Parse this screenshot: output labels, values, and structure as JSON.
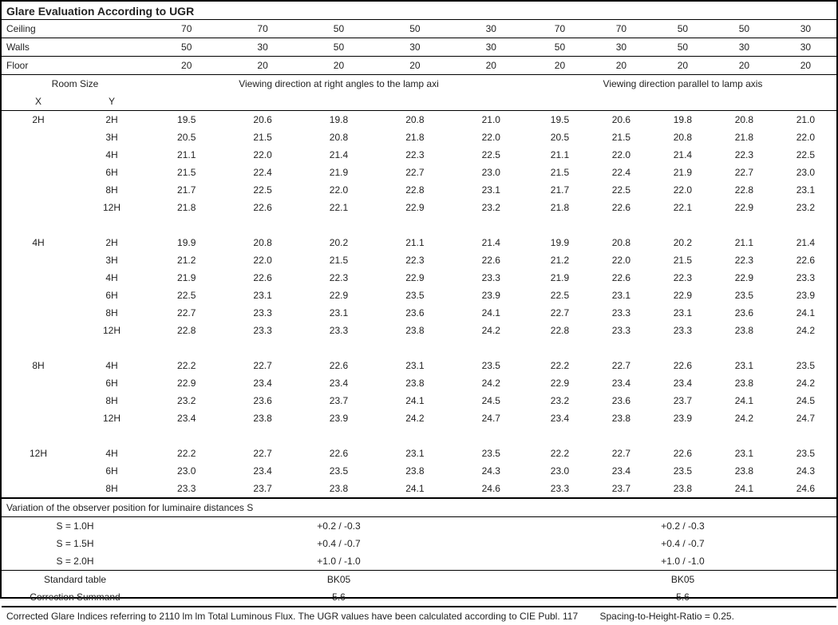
{
  "title": "Glare Evaluation According to UGR",
  "reflectance": {
    "rows": [
      {
        "label": "Ceiling",
        "left": [
          "70",
          "70",
          "50",
          "50",
          "30"
        ],
        "right": [
          "70",
          "70",
          "50",
          "50",
          "30"
        ]
      },
      {
        "label": "Walls",
        "left": [
          "50",
          "30",
          "50",
          "30",
          "30"
        ],
        "right": [
          "50",
          "30",
          "50",
          "30",
          "30"
        ]
      },
      {
        "label": "Floor",
        "left": [
          "20",
          "20",
          "20",
          "20",
          "20"
        ],
        "right": [
          "20",
          "20",
          "20",
          "20",
          "20"
        ]
      }
    ]
  },
  "headers": {
    "room_size": "Room Size",
    "x": "X",
    "y": "Y",
    "left_caption": "Viewing direction at right angles to the lamp axi",
    "right_caption": "Viewing direction parallel to lamp axis"
  },
  "groups": [
    {
      "x": "2H",
      "rows": [
        {
          "y": "2H",
          "l": [
            "19.5",
            "20.6",
            "19.8",
            "20.8",
            "21.0"
          ],
          "r": [
            "19.5",
            "20.6",
            "19.8",
            "20.8",
            "21.0"
          ]
        },
        {
          "y": "3H",
          "l": [
            "20.5",
            "21.5",
            "20.8",
            "21.8",
            "22.0"
          ],
          "r": [
            "20.5",
            "21.5",
            "20.8",
            "21.8",
            "22.0"
          ]
        },
        {
          "y": "4H",
          "l": [
            "21.1",
            "22.0",
            "21.4",
            "22.3",
            "22.5"
          ],
          "r": [
            "21.1",
            "22.0",
            "21.4",
            "22.3",
            "22.5"
          ]
        },
        {
          "y": "6H",
          "l": [
            "21.5",
            "22.4",
            "21.9",
            "22.7",
            "23.0"
          ],
          "r": [
            "21.5",
            "22.4",
            "21.9",
            "22.7",
            "23.0"
          ]
        },
        {
          "y": "8H",
          "l": [
            "21.7",
            "22.5",
            "22.0",
            "22.8",
            "23.1"
          ],
          "r": [
            "21.7",
            "22.5",
            "22.0",
            "22.8",
            "23.1"
          ]
        },
        {
          "y": "12H",
          "l": [
            "21.8",
            "22.6",
            "22.1",
            "22.9",
            "23.2"
          ],
          "r": [
            "21.8",
            "22.6",
            "22.1",
            "22.9",
            "23.2"
          ]
        }
      ]
    },
    {
      "x": "4H",
      "rows": [
        {
          "y": "2H",
          "l": [
            "19.9",
            "20.8",
            "20.2",
            "21.1",
            "21.4"
          ],
          "r": [
            "19.9",
            "20.8",
            "20.2",
            "21.1",
            "21.4"
          ]
        },
        {
          "y": "3H",
          "l": [
            "21.2",
            "22.0",
            "21.5",
            "22.3",
            "22.6"
          ],
          "r": [
            "21.2",
            "22.0",
            "21.5",
            "22.3",
            "22.6"
          ]
        },
        {
          "y": "4H",
          "l": [
            "21.9",
            "22.6",
            "22.3",
            "22.9",
            "23.3"
          ],
          "r": [
            "21.9",
            "22.6",
            "22.3",
            "22.9",
            "23.3"
          ]
        },
        {
          "y": "6H",
          "l": [
            "22.5",
            "23.1",
            "22.9",
            "23.5",
            "23.9"
          ],
          "r": [
            "22.5",
            "23.1",
            "22.9",
            "23.5",
            "23.9"
          ]
        },
        {
          "y": "8H",
          "l": [
            "22.7",
            "23.3",
            "23.1",
            "23.6",
            "24.1"
          ],
          "r": [
            "22.7",
            "23.3",
            "23.1",
            "23.6",
            "24.1"
          ]
        },
        {
          "y": "12H",
          "l": [
            "22.8",
            "23.3",
            "23.3",
            "23.8",
            "24.2"
          ],
          "r": [
            "22.8",
            "23.3",
            "23.3",
            "23.8",
            "24.2"
          ]
        }
      ]
    },
    {
      "x": "8H",
      "rows": [
        {
          "y": "4H",
          "l": [
            "22.2",
            "22.7",
            "22.6",
            "23.1",
            "23.5"
          ],
          "r": [
            "22.2",
            "22.7",
            "22.6",
            "23.1",
            "23.5"
          ]
        },
        {
          "y": "6H",
          "l": [
            "22.9",
            "23.4",
            "23.4",
            "23.8",
            "24.2"
          ],
          "r": [
            "22.9",
            "23.4",
            "23.4",
            "23.8",
            "24.2"
          ]
        },
        {
          "y": "8H",
          "l": [
            "23.2",
            "23.6",
            "23.7",
            "24.1",
            "24.5"
          ],
          "r": [
            "23.2",
            "23.6",
            "23.7",
            "24.1",
            "24.5"
          ]
        },
        {
          "y": "12H",
          "l": [
            "23.4",
            "23.8",
            "23.9",
            "24.2",
            "24.7"
          ],
          "r": [
            "23.4",
            "23.8",
            "23.9",
            "24.2",
            "24.7"
          ]
        }
      ]
    },
    {
      "x": "12H",
      "rows": [
        {
          "y": "4H",
          "l": [
            "22.2",
            "22.7",
            "22.6",
            "23.1",
            "23.5"
          ],
          "r": [
            "22.2",
            "22.7",
            "22.6",
            "23.1",
            "23.5"
          ]
        },
        {
          "y": "6H",
          "l": [
            "23.0",
            "23.4",
            "23.5",
            "23.8",
            "24.3"
          ],
          "r": [
            "23.0",
            "23.4",
            "23.5",
            "23.8",
            "24.3"
          ]
        },
        {
          "y": "8H",
          "l": [
            "23.3",
            "23.7",
            "23.8",
            "24.1",
            "24.6"
          ],
          "r": [
            "23.3",
            "23.7",
            "23.8",
            "24.1",
            "24.6"
          ]
        }
      ]
    }
  ],
  "variation": {
    "title": "Variation of the observer position for luminaire distances S",
    "rows": [
      {
        "label": "S = 1.0H",
        "left": "+0.2 / -0.3",
        "right": "+0.2 / -0.3"
      },
      {
        "label": "S = 1.5H",
        "left": "+0.4 / -0.7",
        "right": "+0.4 / -0.7"
      },
      {
        "label": "S = 2.0H",
        "left": "+1.0 / -1.0",
        "right": "+1.0 / -1.0"
      }
    ]
  },
  "standard": {
    "rows": [
      {
        "label": "Standard table",
        "left": "BK05",
        "right": "BK05"
      },
      {
        "label": "Correction Summand",
        "left": "5.6",
        "right": "5.6"
      }
    ]
  },
  "footnote": {
    "text": "Corrected Glare Indices referring to 2110 lm lm Total Luminous Flux. The UGR values have been calculated according to CIE Publ. 117",
    "spacing": "Spacing-to-Height-Ratio = 0.25."
  }
}
